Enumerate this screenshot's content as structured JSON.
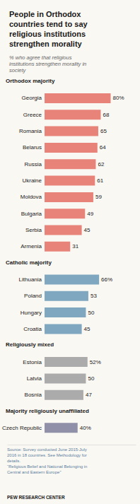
{
  "chart_data": {
    "type": "bar",
    "orientation": "horizontal",
    "title": "People in Orthodox\ncountries tend to say\nreligious institutions\nstrengthen morality",
    "subtitle": "% who agree that religious\ninstitutions strengthen morality in\nsociety",
    "annotations": [
      "Source: Survey conducted June 2015-July\n2016 in 18 countries. See Methodology for\ndetails.\n“Religious Belief and National Belonging in\nCentral and Eastern Europe”",
      "PEW RESEARCH CENTER"
    ],
    "categories": [
      null,
      "Georgia",
      "Greece",
      "Romania",
      "Belarus",
      "Russia",
      "Ukraine",
      "Moldova",
      "Bulgaria",
      "Serbia",
      "Armenia",
      null,
      "Lithuania",
      "Poland",
      "Hungary",
      "Croatia",
      null,
      "Estonia",
      "Latvia",
      "Bosnia",
      null,
      "Czech Republic"
    ],
    "series": [
      {
        "name": "Orthodox majority",
        "color": "#E8837A",
        "values": [
          null,
          80,
          68,
          65,
          64,
          62,
          61,
          59,
          49,
          45,
          31,
          null,
          null,
          null,
          null,
          null,
          null,
          null,
          null,
          null,
          null,
          null
        ],
        "value_labels": [
          null,
          "80%",
          "68",
          "65",
          "64",
          "62",
          "61",
          "59",
          "49",
          "45",
          "31",
          null,
          null,
          null,
          null,
          null,
          null,
          null,
          null,
          null,
          null,
          null
        ]
      },
      {
        "name": "Catholic majority",
        "color": "#7FA8C0",
        "values": [
          null,
          null,
          null,
          null,
          null,
          null,
          null,
          null,
          null,
          null,
          null,
          null,
          66,
          53,
          50,
          45,
          null,
          null,
          null,
          null,
          null,
          null
        ],
        "value_labels": [
          null,
          null,
          null,
          null,
          null,
          null,
          null,
          null,
          null,
          null,
          null,
          null,
          "66%",
          "53",
          "50",
          "45",
          null,
          null,
          null,
          null,
          null,
          null
        ]
      },
      {
        "name": "Religiously mixed",
        "color": "#ABABAB",
        "values": [
          null,
          null,
          null,
          null,
          null,
          null,
          null,
          null,
          null,
          null,
          null,
          null,
          null,
          null,
          null,
          null,
          null,
          52,
          50,
          47,
          null,
          null
        ],
        "value_labels": [
          null,
          null,
          null,
          null,
          null,
          null,
          null,
          null,
          null,
          null,
          null,
          null,
          null,
          null,
          null,
          null,
          null,
          "52%",
          "50",
          "47",
          null,
          null
        ]
      },
      {
        "name": "Majority religiously unaffiliated",
        "color": "#9090A8",
        "values": [
          null,
          null,
          null,
          null,
          null,
          null,
          null,
          null,
          null,
          null,
          null,
          null,
          null,
          null,
          null,
          null,
          null,
          null,
          null,
          null,
          null,
          40
        ],
        "value_labels": [
          null,
          null,
          null,
          null,
          null,
          null,
          null,
          null,
          null,
          null,
          null,
          null,
          null,
          null,
          null,
          null,
          null,
          null,
          null,
          null,
          null,
          "40%"
        ]
      }
    ],
    "xlim": [
      0,
      95
    ],
    "grid": false,
    "data_labels": true,
    "tick_labels": "y"
  }
}
